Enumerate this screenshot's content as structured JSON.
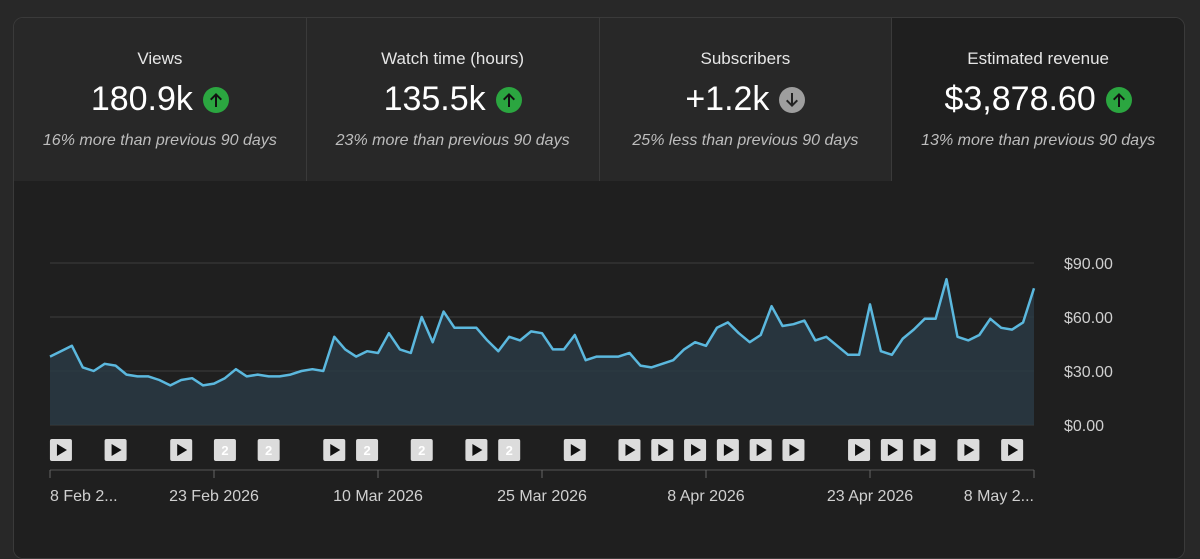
{
  "metrics": [
    {
      "label": "Views",
      "value": "180.9k",
      "trend": "up",
      "compare": "16% more than previous 90 days"
    },
    {
      "label": "Watch time (hours)",
      "value": "135.5k",
      "trend": "up",
      "compare": "23% more than previous 90 days"
    },
    {
      "label": "Subscribers",
      "value": "+1.2k",
      "trend": "down",
      "compare": "25% less than previous 90 days"
    },
    {
      "label": "Estimated revenue",
      "value": "$3,878.60",
      "trend": "up",
      "compare": "13% more than previous 90 days"
    }
  ],
  "colors": {
    "line": "#5bb8de",
    "fill": "#2a3a44",
    "up": "#2ba640",
    "down": "#9e9e9e",
    "marker": "#dcdcdc"
  },
  "chart_data": {
    "type": "area",
    "ylim": [
      0,
      90
    ],
    "yticks": [
      "$0.00",
      "$30.00",
      "$60.00",
      "$90.00"
    ],
    "xticks": [
      "8 Feb 2...",
      "23 Feb 2026",
      "10 Mar 2026",
      "25 Mar 2026",
      "8 Apr 2026",
      "23 Apr 2026",
      "8 May 2..."
    ],
    "grid": true,
    "values": [
      38,
      41,
      44,
      32,
      30,
      34,
      33,
      28,
      27,
      27,
      25,
      22,
      25,
      26,
      22,
      23,
      26,
      31,
      27,
      28,
      27,
      27,
      28,
      30,
      31,
      30,
      49,
      42,
      38,
      41,
      40,
      51,
      42,
      40,
      60,
      46,
      63,
      54,
      54,
      54,
      47,
      41,
      49,
      47,
      52,
      51,
      42,
      42,
      50,
      36,
      38,
      38,
      38,
      40,
      33,
      32,
      34,
      36,
      42,
      46,
      44,
      54,
      57,
      51,
      46,
      50,
      66,
      55,
      56,
      58,
      47,
      49,
      44,
      39,
      39,
      67,
      41,
      39,
      48,
      53,
      59,
      59,
      81,
      49,
      47,
      50,
      59,
      54,
      53,
      57,
      76
    ],
    "markers": [
      {
        "day": 1,
        "label": ""
      },
      {
        "day": 6,
        "label": ""
      },
      {
        "day": 12,
        "label": ""
      },
      {
        "day": 16,
        "label": "2"
      },
      {
        "day": 20,
        "label": "2"
      },
      {
        "day": 26,
        "label": ""
      },
      {
        "day": 29,
        "label": "2"
      },
      {
        "day": 34,
        "label": "2"
      },
      {
        "day": 39,
        "label": ""
      },
      {
        "day": 42,
        "label": "2"
      },
      {
        "day": 48,
        "label": ""
      },
      {
        "day": 53,
        "label": ""
      },
      {
        "day": 56,
        "label": ""
      },
      {
        "day": 59,
        "label": ""
      },
      {
        "day": 62,
        "label": ""
      },
      {
        "day": 65,
        "label": ""
      },
      {
        "day": 68,
        "label": ""
      },
      {
        "day": 74,
        "label": ""
      },
      {
        "day": 77,
        "label": ""
      },
      {
        "day": 80,
        "label": ""
      },
      {
        "day": 84,
        "label": ""
      },
      {
        "day": 88,
        "label": ""
      }
    ]
  }
}
